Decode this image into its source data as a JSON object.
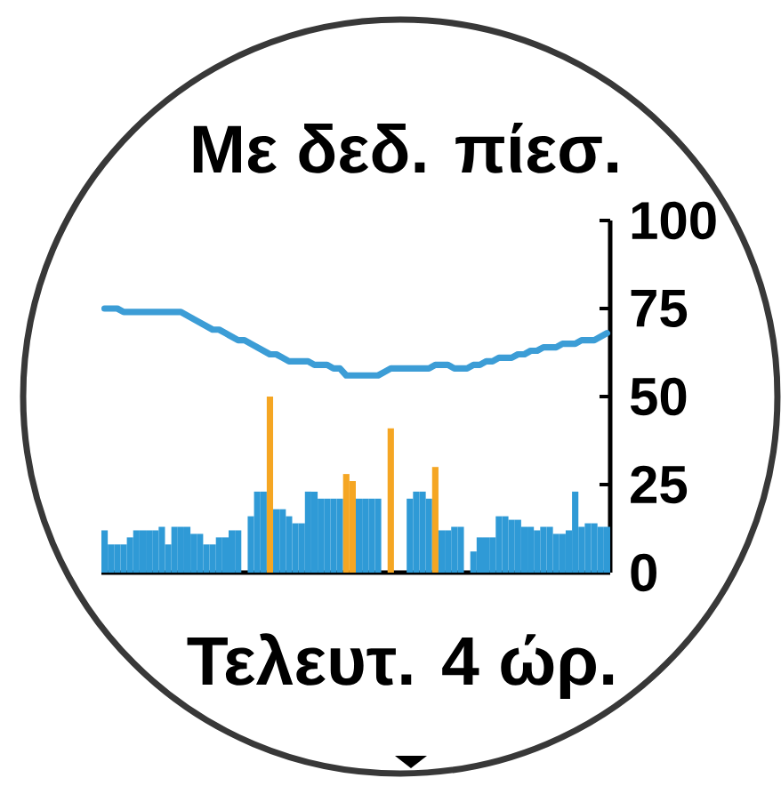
{
  "chart_data": {
    "type": "bar",
    "title": "Με δεδ. πίεσ.",
    "xlabel": "Τελευτ. 4 ώρ.",
    "categories": [
      null,
      null,
      null,
      null,
      null,
      null,
      null,
      null,
      null,
      null,
      null,
      null,
      null,
      null,
      null,
      null,
      null,
      null,
      null,
      null,
      null,
      null,
      null,
      null,
      null,
      null,
      null,
      null,
      null,
      null,
      null,
      null,
      null,
      null,
      null,
      null,
      null,
      null,
      null,
      null,
      null,
      null,
      null,
      null,
      null,
      null,
      null,
      null,
      null,
      null,
      null,
      null,
      null,
      null,
      null,
      null,
      null,
      null,
      null,
      null,
      null,
      null,
      null,
      null,
      null,
      null,
      null,
      null,
      null,
      null,
      null,
      null,
      null,
      null,
      null,
      null,
      null,
      null,
      null,
      null
    ],
    "series": [
      {
        "colors": [
          "#2f9ad6",
          "#2f9ad6",
          "#2f9ad6",
          "#2f9ad6",
          "#2f9ad6",
          "#2f9ad6",
          "#2f9ad6",
          "#2f9ad6",
          "#2f9ad6",
          "#2f9ad6",
          "#2f9ad6",
          "#2f9ad6",
          "#2f9ad6",
          "#2f9ad6",
          "#2f9ad6",
          "#2f9ad6",
          "#2f9ad6",
          "#2f9ad6",
          "#2f9ad6",
          "#2f9ad6",
          "#2f9ad6",
          "#2f9ad6",
          "#2f9ad6",
          "#2f9ad6",
          "#2f9ad6",
          "#2f9ad6",
          "#f5a623",
          "#2f9ad6",
          "#2f9ad6",
          "#2f9ad6",
          "#2f9ad6",
          "#2f9ad6",
          "#2f9ad6",
          "#2f9ad6",
          "#2f9ad6",
          "#2f9ad6",
          "#2f9ad6",
          "#2f9ad6",
          "#f5a623",
          "#f5a623",
          "#2f9ad6",
          "#2f9ad6",
          "#2f9ad6",
          "#2f9ad6",
          "#2f9ad6",
          "#f5a623",
          "#2f9ad6",
          "#2f9ad6",
          "#2f9ad6",
          "#2f9ad6",
          "#2f9ad6",
          "#2f9ad6",
          "#f5a623",
          "#2f9ad6",
          "#2f9ad6",
          "#2f9ad6",
          "#2f9ad6",
          "#2f9ad6",
          "#2f9ad6",
          "#2f9ad6",
          "#2f9ad6",
          "#2f9ad6",
          "#2f9ad6",
          "#2f9ad6",
          "#2f9ad6",
          "#2f9ad6",
          "#2f9ad6",
          "#2f9ad6",
          "#2f9ad6",
          "#2f9ad6",
          "#2f9ad6",
          "#2f9ad6",
          "#2f9ad6",
          "#2f9ad6",
          "#2f9ad6",
          "#2f9ad6",
          "#2f9ad6",
          "#2f9ad6",
          "#2f9ad6",
          "#2f9ad6"
        ],
        "values": [
          12,
          8,
          8,
          8,
          10,
          12,
          12,
          12,
          12,
          13,
          8,
          13,
          13,
          13,
          11,
          11,
          8,
          8,
          10,
          10,
          12,
          12,
          null,
          16,
          23,
          23,
          50,
          18,
          18,
          16,
          14,
          14,
          23,
          23,
          21,
          21,
          21,
          21,
          28,
          26,
          21,
          21,
          21,
          21,
          null,
          41,
          null,
          null,
          21,
          23,
          23,
          21,
          30,
          12,
          12,
          13,
          13,
          null,
          6,
          10,
          10,
          10,
          16,
          16,
          15,
          15,
          13,
          13,
          12,
          13,
          13,
          11,
          11,
          12,
          23,
          13,
          14,
          14,
          13,
          13
        ]
      },
      {
        "type": "line",
        "color": "#3c9dd6",
        "values": [
          75,
          75,
          75,
          74,
          74,
          74,
          74,
          74,
          74,
          74,
          74,
          74,
          74,
          73,
          72,
          71,
          70,
          69,
          69,
          68,
          67,
          66,
          66,
          65,
          64,
          63,
          62,
          62,
          61,
          60,
          60,
          60,
          60,
          59,
          59,
          59,
          58,
          58,
          56,
          56,
          56,
          56,
          56,
          56,
          57,
          58,
          58,
          58,
          58,
          58,
          58,
          58,
          59,
          59,
          59,
          58,
          58,
          58,
          59,
          59,
          60,
          60,
          61,
          61,
          61,
          62,
          62,
          63,
          63,
          64,
          64,
          64,
          65,
          65,
          65,
          66,
          66,
          66,
          67,
          68
        ]
      }
    ],
    "ylim": [
      0,
      100
    ],
    "yticks": [
      0,
      25,
      50,
      75,
      100
    ]
  }
}
